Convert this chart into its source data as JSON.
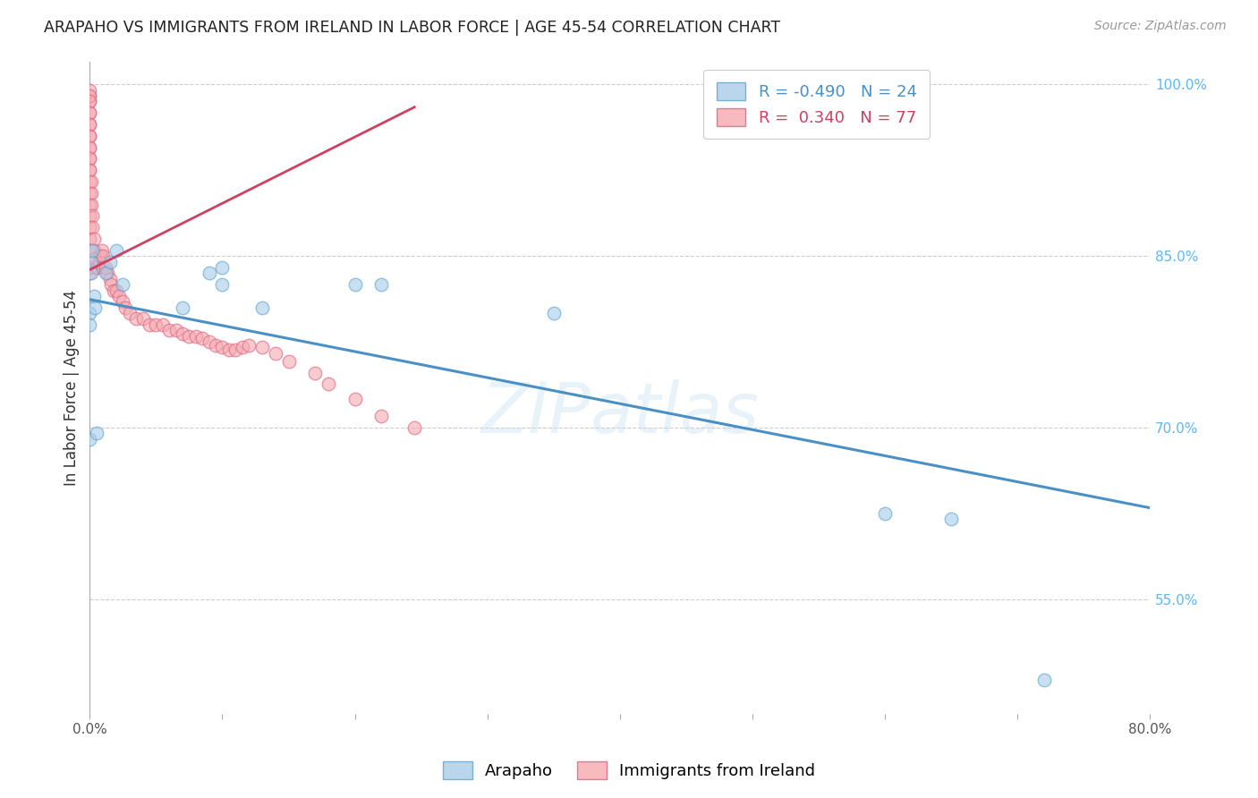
{
  "title": "ARAPAHO VS IMMIGRANTS FROM IRELAND IN LABOR FORCE | AGE 45-54 CORRELATION CHART",
  "source": "Source: ZipAtlas.com",
  "ylabel": "In Labor Force | Age 45-54",
  "xlim": [
    0.0,
    0.8
  ],
  "ylim": [
    0.45,
    1.02
  ],
  "ytick_pos": [
    0.55,
    0.7,
    0.85,
    1.0
  ],
  "ytick_labels": [
    "55.0%",
    "70.0%",
    "85.0%",
    "100.0%"
  ],
  "xtick_pos": [
    0.0,
    0.1,
    0.2,
    0.3,
    0.4,
    0.5,
    0.6,
    0.7,
    0.8
  ],
  "xtick_labels": [
    "0.0%",
    "",
    "",
    "",
    "",
    "",
    "",
    "",
    "80.0%"
  ],
  "arapaho_R": -0.49,
  "arapaho_N": 24,
  "ireland_R": 0.34,
  "ireland_N": 77,
  "blue_scatter_color": "#a8cce8",
  "blue_edge_color": "#5ba3d0",
  "pink_scatter_color": "#f4a9b0",
  "pink_edge_color": "#e06080",
  "blue_line_color": "#4a90c4",
  "pink_line_color": "#d04060",
  "watermark": "ZIPatlas",
  "arapaho_x": [
    0.0,
    0.0,
    0.0,
    0.001,
    0.001,
    0.002,
    0.003,
    0.004,
    0.005,
    0.012,
    0.015,
    0.02,
    0.025,
    0.07,
    0.09,
    0.1,
    0.1,
    0.13,
    0.2,
    0.22,
    0.35,
    0.6,
    0.65,
    0.72
  ],
  "arapaho_y": [
    0.8,
    0.79,
    0.69,
    0.835,
    0.845,
    0.855,
    0.815,
    0.805,
    0.695,
    0.835,
    0.845,
    0.855,
    0.825,
    0.805,
    0.835,
    0.84,
    0.825,
    0.805,
    0.825,
    0.825,
    0.8,
    0.625,
    0.62,
    0.48
  ],
  "ireland_x": [
    0.0,
    0.0,
    0.0,
    0.0,
    0.0,
    0.0,
    0.0,
    0.0,
    0.0,
    0.0,
    0.0,
    0.0,
    0.0,
    0.0,
    0.0,
    0.0,
    0.0,
    0.0,
    0.0,
    0.0,
    0.0,
    0.0,
    0.0,
    0.0,
    0.0,
    0.0,
    0.001,
    0.001,
    0.001,
    0.002,
    0.002,
    0.003,
    0.003,
    0.004,
    0.005,
    0.006,
    0.007,
    0.008,
    0.009,
    0.01,
    0.01,
    0.012,
    0.013,
    0.015,
    0.016,
    0.018,
    0.02,
    0.022,
    0.025,
    0.027,
    0.03,
    0.035,
    0.04,
    0.045,
    0.05,
    0.055,
    0.06,
    0.065,
    0.07,
    0.075,
    0.08,
    0.085,
    0.09,
    0.095,
    0.1,
    0.105,
    0.11,
    0.115,
    0.12,
    0.13,
    0.14,
    0.15,
    0.17,
    0.18,
    0.2,
    0.22,
    0.245
  ],
  "ireland_y": [
    0.835,
    0.84,
    0.855,
    0.865,
    0.875,
    0.885,
    0.895,
    0.905,
    0.915,
    0.925,
    0.935,
    0.945,
    0.955,
    0.965,
    0.975,
    0.985,
    0.99,
    0.995,
    0.99,
    0.985,
    0.975,
    0.965,
    0.955,
    0.945,
    0.935,
    0.925,
    0.915,
    0.905,
    0.895,
    0.885,
    0.875,
    0.865,
    0.855,
    0.848,
    0.84,
    0.84,
    0.845,
    0.85,
    0.855,
    0.85,
    0.84,
    0.84,
    0.835,
    0.83,
    0.825,
    0.82,
    0.82,
    0.815,
    0.81,
    0.805,
    0.8,
    0.795,
    0.795,
    0.79,
    0.79,
    0.79,
    0.785,
    0.785,
    0.782,
    0.78,
    0.78,
    0.778,
    0.775,
    0.772,
    0.77,
    0.768,
    0.768,
    0.77,
    0.772,
    0.77,
    0.765,
    0.758,
    0.748,
    0.738,
    0.725,
    0.71,
    0.7
  ]
}
